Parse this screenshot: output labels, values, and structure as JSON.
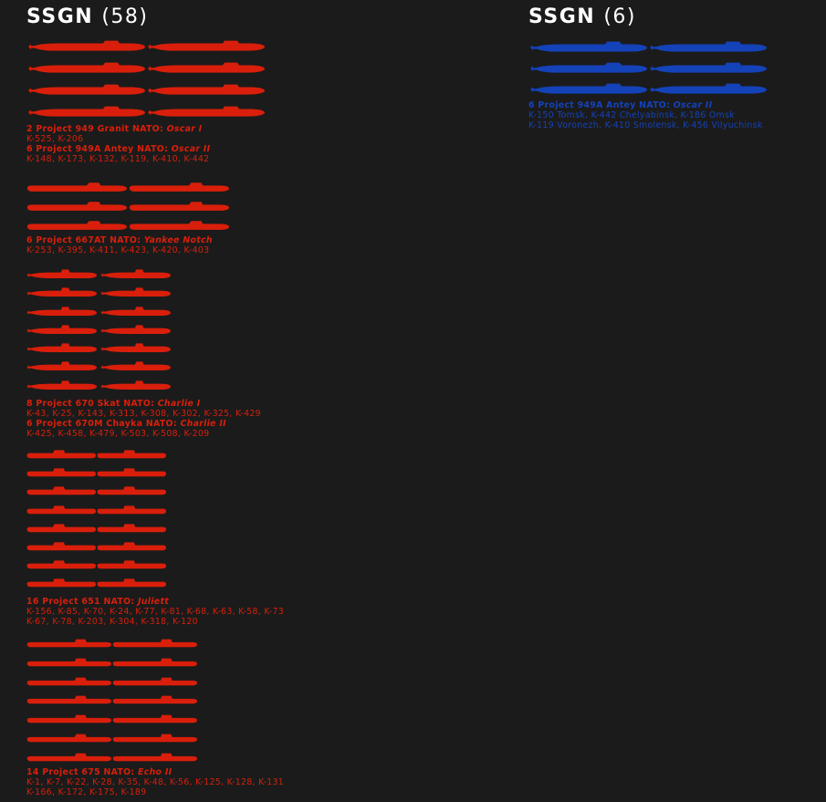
{
  "colors": {
    "background": "#1b1b1b",
    "soviet": "#d91f0b",
    "russia": "#1442b8",
    "title": "#ffffff"
  },
  "left": {
    "title": "SSGN",
    "count": "(58)",
    "groups": [
      {
        "icon": "oscar-submarine-icon",
        "count": 8,
        "classes": [
          {
            "head": "2 Project 949 Granit  NATO: ",
            "nato": "Oscar I",
            "boats": "K-525, K-206"
          },
          {
            "head": "6 Project 949A Antey NATO: ",
            "nato": "Oscar II",
            "boats": "K-148, K-173, K-132, K-119, K-410, K-442"
          }
        ]
      },
      {
        "icon": "yankee-notch-submarine-icon",
        "count": 6,
        "classes": [
          {
            "head": "6 Project 667AT  NATO: ",
            "nato": "Yankee Notch",
            "boats": "K-253, K-395, K-411, K-423, K-420, K-403"
          }
        ]
      },
      {
        "icon": "charlie-submarine-icon",
        "count": 14,
        "classes": [
          {
            "head": "8 Project 670 Skat  NATO: ",
            "nato": "Charlie I",
            "boats": "K-43, K-25, K-143, K-313, K-308, K-302, K-325, K-429"
          },
          {
            "head": "6 Project 670M Chayka  NATO: ",
            "nato": "Charlie II",
            "boats": "K-425, K-458, K-479, K-503, K-508, K-209"
          }
        ]
      },
      {
        "icon": "juliett-submarine-icon",
        "count": 16,
        "classes": [
          {
            "head": "16 Project 651  NATO: ",
            "nato": "Juliett",
            "boats": "K-156, K-85, K-70, K-24, K-77, K-81, K-68, K-63, K-58, K-73",
            "boats2": "K-67, K-78, K-203, K-304, K-318, K-120"
          }
        ]
      },
      {
        "icon": "echo-submarine-icon",
        "count": 14,
        "classes": [
          {
            "head": "14 Project 675  NATO: ",
            "nato": "Echo II",
            "boats": "K-1, K-7, K-22, K-28, K-35, K-48, K-56, K-125, K-128, K-131",
            "boats2": "K-166, K-172, K-175, K-189"
          }
        ]
      }
    ]
  },
  "right": {
    "title": "SSGN",
    "count": "(6)",
    "groups": [
      {
        "icon": "oscar-submarine-icon",
        "count": 6,
        "classes": [
          {
            "head": "6 Project 949A Antey NATO: ",
            "nato": "Oscar II",
            "boats": "K-150 Tomsk, K-442 Chelyabinsk, K-186 Omsk",
            "boats2": "K-119 Voronezh, K-410 Smolensk, K-456 Vilyuchinsk"
          }
        ]
      }
    ]
  }
}
